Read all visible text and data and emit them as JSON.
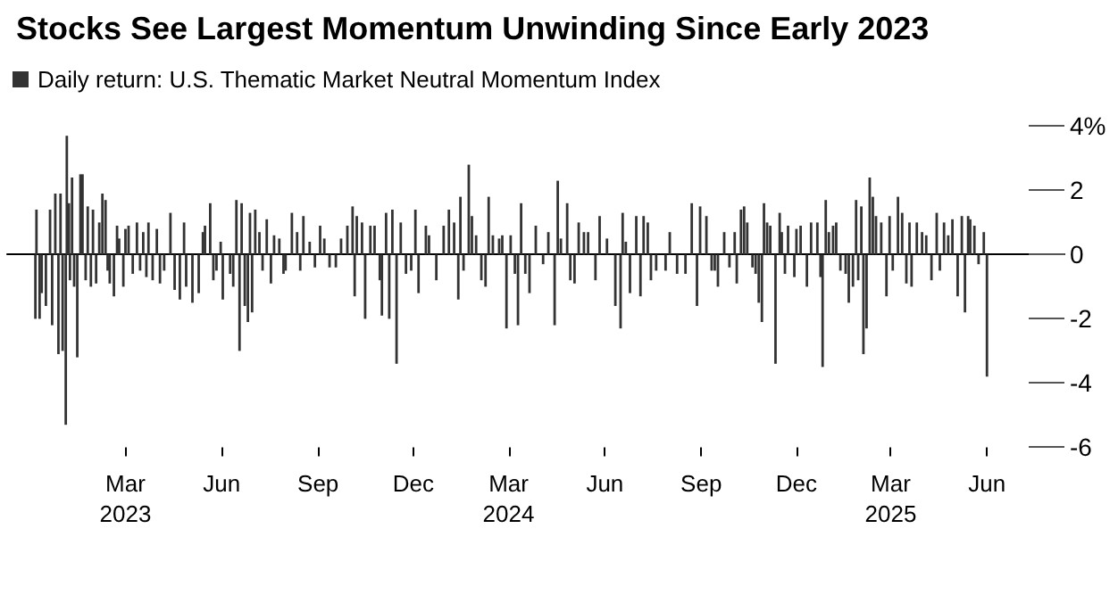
{
  "chart_data": {
    "type": "bar",
    "title": "Stocks See Largest Momentum Unwinding Since Early 2023",
    "x": [
      "2022-12-05",
      "2022-12-06",
      "2022-12-09",
      "2022-12-11",
      "2022-12-15",
      "2022-12-19",
      "2022-12-21",
      "2022-12-24",
      "2022-12-27",
      "2022-12-29",
      "2022-12-31",
      "2023-01-03",
      "2023-01-04",
      "2023-01-06",
      "2023-01-07",
      "2023-01-09",
      "2023-01-11",
      "2023-01-14",
      "2023-01-17",
      "2023-01-19",
      "2023-01-22",
      "2023-01-24",
      "2023-01-27",
      "2023-01-29",
      "2023-02-01",
      "2023-02-04",
      "2023-02-07",
      "2023-02-10",
      "2023-02-12",
      "2023-02-14",
      "2023-02-18",
      "2023-02-21",
      "2023-02-23",
      "2023-02-27",
      "2023-03-01",
      "2023-03-04",
      "2023-03-08",
      "2023-03-12",
      "2023-03-15",
      "2023-03-18",
      "2023-03-21",
      "2023-03-23",
      "2023-03-27",
      "2023-03-31",
      "2023-04-03",
      "2023-04-07",
      "2023-04-13",
      "2023-04-17",
      "2023-04-22",
      "2023-04-26",
      "2023-04-28",
      "2023-05-04",
      "2023-05-10",
      "2023-05-14",
      "2023-05-16",
      "2023-05-21",
      "2023-05-24",
      "2023-05-27",
      "2023-05-31",
      "2023-06-02",
      "2023-06-09",
      "2023-06-12",
      "2023-06-15",
      "2023-06-18",
      "2023-06-20",
      "2023-06-23",
      "2023-06-26",
      "2023-06-28",
      "2023-06-30",
      "2023-07-03",
      "2023-07-07",
      "2023-07-10",
      "2023-07-14",
      "2023-07-18",
      "2023-07-21",
      "2023-07-26",
      "2023-07-30",
      "2023-08-01",
      "2023-08-07",
      "2023-08-12",
      "2023-08-15",
      "2023-08-18",
      "2023-08-24",
      "2023-08-29",
      "2023-09-03",
      "2023-09-07",
      "2023-09-12",
      "2023-09-18",
      "2023-09-23",
      "2023-09-29",
      "2023-10-04",
      "2023-10-06",
      "2023-10-08",
      "2023-10-13",
      "2023-10-16",
      "2023-10-21",
      "2023-10-25",
      "2023-10-30",
      "2023-11-01",
      "2023-11-05",
      "2023-11-08",
      "2023-11-11",
      "2023-11-15",
      "2023-11-19",
      "2023-11-24",
      "2023-11-29",
      "2023-12-03",
      "2023-12-06",
      "2023-12-13",
      "2023-12-16",
      "2023-12-23",
      "2023-12-30",
      "2024-01-04",
      "2024-01-09",
      "2024-01-13",
      "2024-01-15",
      "2024-01-18",
      "2024-01-23",
      "2024-01-26",
      "2024-01-30",
      "2024-02-04",
      "2024-02-08",
      "2024-02-11",
      "2024-02-15",
      "2024-02-21",
      "2024-02-24",
      "2024-02-28",
      "2024-03-03",
      "2024-03-07",
      "2024-03-10",
      "2024-03-13",
      "2024-03-17",
      "2024-03-21",
      "2024-03-27",
      "2024-04-03",
      "2024-04-08",
      "2024-04-14",
      "2024-04-17",
      "2024-04-20",
      "2024-04-26",
      "2024-04-29",
      "2024-05-03",
      "2024-05-07",
      "2024-05-12",
      "2024-05-16",
      "2024-05-23",
      "2024-05-27",
      "2024-06-03",
      "2024-06-11",
      "2024-06-16",
      "2024-06-18",
      "2024-06-21",
      "2024-06-25",
      "2024-07-01",
      "2024-07-05",
      "2024-07-08",
      "2024-07-12",
      "2024-07-15",
      "2024-07-20",
      "2024-07-29",
      "2024-08-02",
      "2024-08-09",
      "2024-08-17",
      "2024-08-23",
      "2024-08-28",
      "2024-08-31",
      "2024-09-06",
      "2024-09-11",
      "2024-09-14",
      "2024-09-17",
      "2024-09-23",
      "2024-09-28",
      "2024-10-03",
      "2024-10-05",
      "2024-10-09",
      "2024-10-12",
      "2024-10-15",
      "2024-10-20",
      "2024-10-23",
      "2024-10-26",
      "2024-10-29",
      "2024-10-31",
      "2024-11-03",
      "2024-11-06",
      "2024-11-11",
      "2024-11-15",
      "2024-11-17",
      "2024-11-20",
      "2024-11-23",
      "2024-11-29",
      "2024-12-01",
      "2024-12-05",
      "2024-12-11",
      "2024-12-15",
      "2024-12-21",
      "2024-12-24",
      "2024-12-26",
      "2024-12-29",
      "2025-01-01",
      "2025-01-05",
      "2025-01-08",
      "2025-01-12",
      "2025-01-17",
      "2025-01-20",
      "2025-01-24",
      "2025-01-27",
      "2025-01-29",
      "2025-02-01",
      "2025-02-03",
      "2025-02-06",
      "2025-02-09",
      "2025-02-12",
      "2025-02-15",
      "2025-02-20",
      "2025-02-25",
      "2025-02-28",
      "2025-03-03",
      "2025-03-08",
      "2025-03-12",
      "2025-03-16",
      "2025-03-19",
      "2025-03-21",
      "2025-03-26",
      "2025-03-31",
      "2025-04-04",
      "2025-04-09",
      "2025-04-14",
      "2025-04-17",
      "2025-04-21",
      "2025-04-25",
      "2025-04-29",
      "2025-05-04",
      "2025-05-08",
      "2025-05-11",
      "2025-05-14",
      "2025-05-16",
      "2025-05-20",
      "2025-05-24",
      "2025-05-29",
      "2025-06-01"
    ],
    "series": [
      {
        "name": "Daily return: U.S. Thematic Market Neutral Momentum Index",
        "color": "#333333",
        "values": [
          -2.0,
          1.4,
          -2.0,
          -1.2,
          -1.6,
          1.4,
          -2.2,
          1.9,
          -3.1,
          1.9,
          -3.0,
          -5.3,
          3.7,
          1.6,
          -0.8,
          2.4,
          -1.0,
          -3.2,
          2.5,
          2.5,
          -0.8,
          1.5,
          -1.0,
          1.4,
          -0.9,
          1.0,
          1.9,
          1.7,
          -0.5,
          -0.9,
          -1.3,
          0.9,
          0.5,
          -1.0,
          0.8,
          0.9,
          -0.6,
          1.0,
          -0.5,
          0.7,
          -0.7,
          1.0,
          -0.8,
          0.8,
          -0.9,
          -0.5,
          1.3,
          -1.1,
          -1.4,
          1.0,
          -1.0,
          -1.5,
          -1.2,
          0.7,
          0.9,
          1.6,
          -0.8,
          -0.5,
          0.4,
          -1.4,
          -0.6,
          -1.0,
          1.7,
          -3.0,
          1.6,
          -1.6,
          -2.1,
          1.3,
          -1.8,
          1.4,
          0.7,
          -0.5,
          1.1,
          -0.9,
          0.6,
          0.5,
          -0.6,
          -0.5,
          1.3,
          0.7,
          -0.5,
          1.2,
          0.4,
          -0.4,
          0.9,
          0.5,
          -0.4,
          -0.4,
          0.5,
          0.9,
          1.5,
          -1.3,
          1.2,
          1.0,
          -2.0,
          0.9,
          0.9,
          -0.8,
          -1.9,
          1.3,
          -2.0,
          1.4,
          -3.4,
          1.0,
          -0.6,
          -0.5,
          1.4,
          -1.2,
          0.9,
          0.6,
          -0.8,
          0.9,
          1.4,
          1.0,
          -1.4,
          1.8,
          -0.5,
          2.8,
          1.2,
          0.6,
          -0.8,
          -1.0,
          1.8,
          0.6,
          0.5,
          0.6,
          -2.3,
          0.6,
          -0.6,
          -2.2,
          1.6,
          -0.6,
          -1.2,
          0.9,
          -0.3,
          0.7,
          -2.2,
          2.3,
          0.5,
          1.6,
          -0.8,
          -0.9,
          1.0,
          0.7,
          0.7,
          -0.8,
          1.2,
          0.5,
          -1.6,
          -2.3,
          1.3,
          0.4,
          -1.2,
          1.2,
          -1.3,
          1.2,
          1.0,
          -0.8,
          -0.5,
          -0.5,
          0.7,
          -0.6,
          -0.6,
          1.6,
          -1.6,
          1.5,
          1.2,
          -0.5,
          -0.5,
          -1.0,
          0.7,
          -0.4,
          0.7,
          -0.9,
          1.4,
          1.5,
          1.0,
          -0.4,
          -0.6,
          -1.5,
          -2.1,
          1.6,
          1.0,
          0.9,
          -3.4,
          1.3,
          0.7,
          -0.6,
          0.9,
          -0.7,
          0.8,
          0.9,
          -1.0,
          1.0,
          1.0,
          -0.7,
          -3.5,
          1.7,
          0.7,
          0.9,
          1.0,
          -0.5,
          -0.6,
          -1.5,
          -1.0,
          1.7,
          -0.8,
          1.5,
          -3.1,
          -2.3,
          2.4,
          1.8,
          1.2,
          1.0,
          -1.3,
          1.2,
          -0.5,
          1.8,
          1.3,
          -0.9,
          1.0,
          -1.0,
          1.0,
          0.7,
          0.6,
          -0.8,
          1.3,
          -0.5,
          1.0,
          0.6,
          1.1,
          -1.3,
          1.2,
          -1.8,
          1.2,
          1.1,
          0.9,
          -0.3,
          0.7,
          -3.8
        ]
      }
    ],
    "xlim": [
      "2022-11-08",
      "2025-08-14"
    ],
    "xticks": [
      {
        "value": "2023-03-01",
        "label": "Mar\n2023"
      },
      {
        "value": "2023-06-01",
        "label": "Jun"
      },
      {
        "value": "2023-09-01",
        "label": "Sep"
      },
      {
        "value": "2023-12-01",
        "label": "Dec"
      },
      {
        "value": "2024-03-01",
        "label": "Mar\n2024"
      },
      {
        "value": "2024-06-01",
        "label": "Jun"
      },
      {
        "value": "2024-09-01",
        "label": "Sep"
      },
      {
        "value": "2024-12-01",
        "label": "Dec"
      },
      {
        "value": "2025-03-01",
        "label": "Mar\n2025"
      },
      {
        "value": "2025-06-01",
        "label": "Jun"
      }
    ],
    "ylim": [
      -6,
      4
    ],
    "yticks": [
      {
        "value": 4,
        "label": "4%"
      },
      2,
      0,
      -2,
      -4,
      -6
    ],
    "legend": "top left",
    "grid": "y"
  }
}
